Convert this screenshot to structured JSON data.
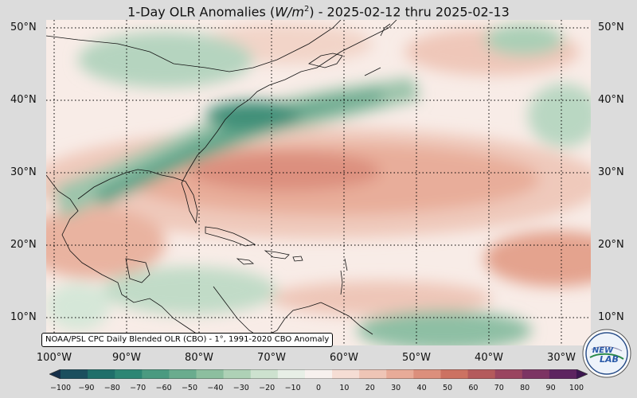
{
  "title": {
    "prefix": "1-Day OLR Anomalies (",
    "unit_base": "W/m",
    "unit_exp": "2",
    "suffix": ") - 2025-02-12 thru 2025-02-13"
  },
  "lat_labels": [
    "50°N",
    "40°N",
    "30°N",
    "20°N",
    "10°N"
  ],
  "lon_labels": [
    "100°W",
    "90°W",
    "80°W",
    "70°W",
    "60°W",
    "50°W",
    "40°W",
    "30°W"
  ],
  "source_note": "NOAA/PSL CPC Daily Blended OLR (CBO) - 1°, 1991-2020 CBO Anomaly",
  "colorbar": {
    "ticks": [
      "−100",
      "−90",
      "−80",
      "−70",
      "−60",
      "−50",
      "−40",
      "−30",
      "−20",
      "−10",
      "0",
      "10",
      "20",
      "30",
      "40",
      "50",
      "60",
      "70",
      "80",
      "90",
      "100"
    ],
    "colors": [
      "#16304a",
      "#1b4f5e",
      "#1f6f6a",
      "#2d8674",
      "#4a9a80",
      "#6aac8e",
      "#8cbf9f",
      "#aed1b6",
      "#cde2cf",
      "#e7efe6",
      "#f7f1ee",
      "#f5ddd4",
      "#efc5b6",
      "#e8ab98",
      "#dc8f7c",
      "#cc7262",
      "#b45a5c",
      "#9a4560",
      "#7c3463",
      "#5d2460",
      "#3c1650"
    ]
  },
  "logo": {
    "line1": "NEW",
    "line2": "LAB"
  }
}
